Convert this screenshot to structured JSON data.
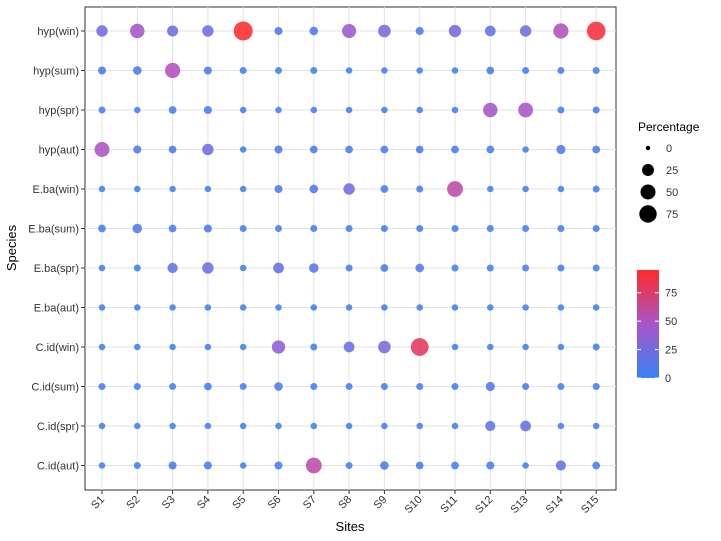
{
  "chart_data": {
    "type": "scatter",
    "subtype": "bubble",
    "xlabel": "Sites",
    "ylabel": "Species",
    "x_categories": [
      "S1",
      "S2",
      "S3",
      "S4",
      "S5",
      "S6",
      "S7",
      "S8",
      "S9",
      "S10",
      "S11",
      "S12",
      "S13",
      "S14",
      "S15"
    ],
    "y_categories": [
      "hyp(win)",
      "hyp(sum)",
      "hyp(spr)",
      "hyp(aut)",
      "E.ba(win)",
      "E.ba(sum)",
      "E.ba(spr)",
      "E.ba(aut)",
      "C.id(win)",
      "C.id(sum)",
      "C.id(spr)",
      "C.id(aut)"
    ],
    "values": [
      [
        22,
        45,
        20,
        22,
        95,
        6,
        8,
        42,
        30,
        6,
        28,
        18,
        22,
        52,
        90
      ],
      [
        6,
        8,
        52,
        6,
        3,
        3,
        3,
        2,
        2,
        2,
        2,
        5,
        3,
        3,
        3
      ],
      [
        3,
        2,
        5,
        6,
        2,
        2,
        2,
        2,
        2,
        2,
        2,
        45,
        48,
        3,
        3
      ],
      [
        50,
        6,
        5,
        22,
        2,
        6,
        5,
        5,
        5,
        5,
        5,
        5,
        2,
        10,
        5
      ],
      [
        2,
        2,
        2,
        2,
        2,
        6,
        8,
        22,
        5,
        3,
        58,
        2,
        2,
        2,
        3
      ],
      [
        5,
        12,
        5,
        6,
        3,
        3,
        3,
        3,
        3,
        3,
        3,
        3,
        3,
        3,
        3
      ],
      [
        2,
        3,
        15,
        22,
        2,
        18,
        12,
        3,
        5,
        8,
        3,
        3,
        3,
        3,
        3
      ],
      [
        2,
        2,
        2,
        2,
        2,
        2,
        2,
        2,
        2,
        2,
        2,
        2,
        2,
        2,
        2
      ],
      [
        2,
        2,
        2,
        2,
        2,
        35,
        3,
        18,
        30,
        80,
        2,
        2,
        2,
        2,
        3
      ],
      [
        3,
        3,
        3,
        5,
        3,
        8,
        3,
        3,
        3,
        3,
        3,
        10,
        3,
        3,
        3
      ],
      [
        2,
        2,
        2,
        2,
        2,
        2,
        2,
        2,
        2,
        2,
        2,
        15,
        18,
        2,
        2
      ],
      [
        2,
        3,
        6,
        6,
        2,
        6,
        58,
        3,
        8,
        5,
        5,
        6,
        2,
        15,
        5
      ]
    ],
    "legend_size": {
      "title": "Percentage",
      "labels": [
        "0",
        "25",
        "50",
        "75"
      ]
    },
    "legend_color": {
      "labels": [
        "0",
        "25",
        "50",
        "75"
      ],
      "low_color": "#3b82f6",
      "mid_color": "#a855c8",
      "high_color": "#ff2b2b",
      "range": [
        0,
        95
      ]
    },
    "grid": true,
    "legend_position": "right"
  }
}
